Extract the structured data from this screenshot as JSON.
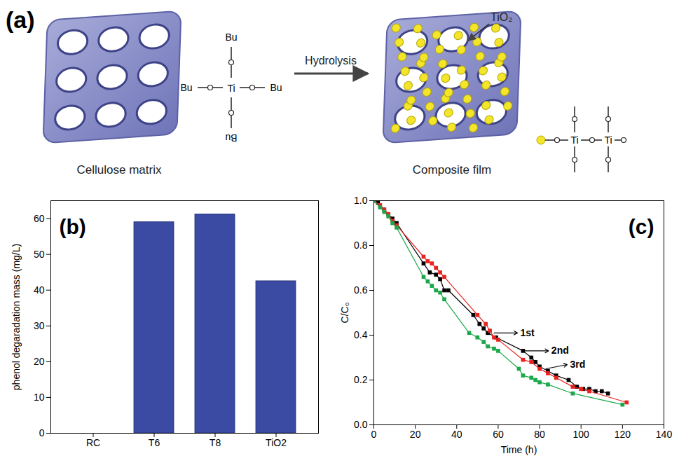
{
  "diagram": {
    "panel": "(a)",
    "left_label": "Cellulose matrix",
    "right_label": "Composite film",
    "arrow_label": "Hydrolysis",
    "particle_label": "TiO₂",
    "precursor": {
      "center": "Ti",
      "substituents": [
        "Bu",
        "Bu",
        "Bu",
        "Bu"
      ]
    },
    "product": {
      "atoms": [
        "Ti",
        "Ti"
      ]
    }
  },
  "chart_data": [
    {
      "type": "bar",
      "panel": "(b)",
      "y_label": "phenol degaradation mass (mg/L)",
      "categories": [
        "RC",
        "T6",
        "T8",
        "TiO2"
      ],
      "values": [
        0,
        59,
        61.2,
        42.5
      ],
      "color": "#3b4ba3",
      "ylim": [
        0,
        65
      ],
      "yticks": [
        0,
        10,
        20,
        30,
        40,
        50,
        60
      ]
    },
    {
      "type": "line",
      "panel": "(c)",
      "x_label": "Time (h)",
      "y_label": "C/C₀",
      "marker": "square",
      "xlim": [
        0,
        140
      ],
      "xticks": [
        0,
        20,
        40,
        60,
        80,
        100,
        120,
        140
      ],
      "ylim": [
        0,
        1.0
      ],
      "yticks": [
        {
          "value": 0,
          "label": "0.0"
        },
        {
          "value": 0.2,
          "label": "0.2"
        },
        {
          "value": 0.4,
          "label": "0.4"
        },
        {
          "value": 0.6,
          "label": "0.6"
        },
        {
          "value": 0.8,
          "label": "0.8"
        },
        {
          "value": 1.0,
          "label": "1.0"
        }
      ],
      "series": [
        {
          "name": "1st",
          "color": "#000000",
          "x": [
            0,
            2,
            5,
            7,
            9,
            11,
            24,
            27,
            30,
            32,
            34,
            36,
            48,
            51,
            53,
            55,
            59,
            72,
            76,
            78,
            80,
            84,
            88,
            94,
            98,
            101,
            104,
            107,
            110,
            113
          ],
          "values": [
            1.0,
            0.99,
            0.96,
            0.94,
            0.92,
            0.9,
            0.72,
            0.68,
            0.67,
            0.65,
            0.6,
            0.6,
            0.49,
            0.45,
            0.43,
            0.41,
            0.39,
            0.33,
            0.3,
            0.28,
            0.26,
            0.24,
            0.22,
            0.2,
            0.17,
            0.16,
            0.16,
            0.15,
            0.15,
            0.14
          ],
          "annotation": {
            "x": 70,
            "y": 0.41,
            "arrow_from": [
              58,
              0.41
            ]
          }
        },
        {
          "name": "2nd",
          "color": "#e8221e",
          "x": [
            0,
            3,
            5,
            7,
            9,
            11,
            24,
            26,
            28,
            30,
            32,
            34,
            50,
            54,
            56,
            58,
            60,
            72,
            76,
            80,
            84,
            88,
            96,
            100,
            104,
            122
          ],
          "values": [
            1.0,
            0.98,
            0.96,
            0.94,
            0.91,
            0.89,
            0.75,
            0.73,
            0.72,
            0.7,
            0.68,
            0.66,
            0.49,
            0.45,
            0.42,
            0.39,
            0.38,
            0.29,
            0.28,
            0.25,
            0.23,
            0.21,
            0.17,
            0.16,
            0.15,
            0.1
          ],
          "annotation": {
            "x": 85,
            "y": 0.33,
            "arrow_from": [
              73,
              0.33
            ]
          }
        },
        {
          "name": "3rd",
          "color": "#1aa84a",
          "x": [
            0,
            3,
            5,
            7,
            9,
            11,
            24,
            26,
            28,
            30,
            32,
            34,
            46,
            50,
            53,
            55,
            58,
            60,
            70,
            72,
            76,
            78,
            80,
            84,
            96,
            120
          ],
          "values": [
            1.0,
            0.97,
            0.95,
            0.93,
            0.9,
            0.88,
            0.66,
            0.64,
            0.62,
            0.6,
            0.59,
            0.56,
            0.41,
            0.39,
            0.37,
            0.35,
            0.34,
            0.33,
            0.25,
            0.22,
            0.21,
            0.2,
            0.19,
            0.18,
            0.14,
            0.09
          ],
          "annotation": {
            "x": 94,
            "y": 0.27,
            "arrow_from": [
              83,
              0.25
            ]
          }
        }
      ]
    }
  ]
}
